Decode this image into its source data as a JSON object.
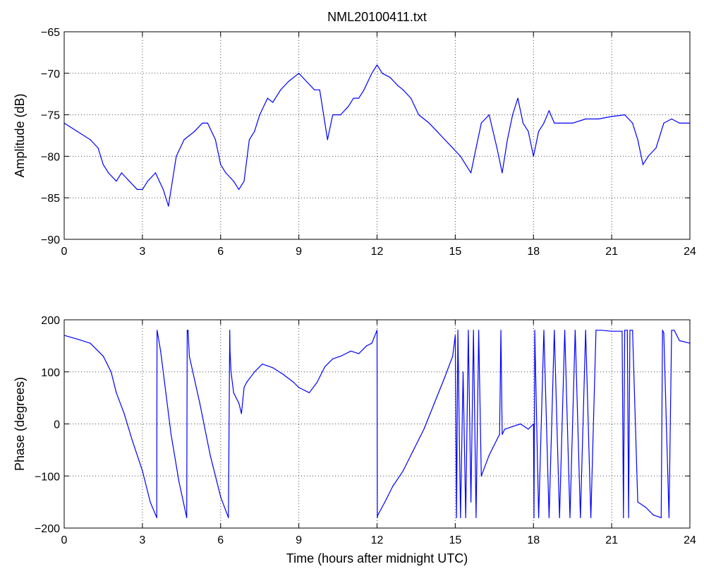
{
  "chart_data": [
    {
      "type": "line",
      "title": "NML20100411.txt",
      "xlabel": "",
      "ylabel": "Amplitude (dB)",
      "xlim": [
        0,
        24
      ],
      "ylim": [
        -90,
        -65
      ],
      "xticks": [
        0,
        3,
        6,
        9,
        12,
        15,
        18,
        21,
        24
      ],
      "xtick_labels": [
        "0",
        "3",
        "6",
        "9",
        "12",
        "15",
        "18",
        "21",
        "24"
      ],
      "yticks": [
        -65,
        -70,
        -75,
        -80,
        -85,
        -90
      ],
      "ytick_labels": [
        "−65",
        "−70",
        "−75",
        "−80",
        "−85",
        "−90"
      ],
      "grid": true,
      "color": "#0000ff",
      "series": [
        {
          "x": [
            0,
            0.5,
            1.0,
            1.3,
            1.5,
            1.7,
            2.0,
            2.2,
            2.5,
            2.8,
            3.0,
            3.2,
            3.5,
            3.8,
            4.0,
            4.1,
            4.3,
            4.6,
            5.0,
            5.3,
            5.5,
            5.8,
            6.0,
            6.2,
            6.5,
            6.7,
            6.9,
            7.1,
            7.3,
            7.5,
            7.8,
            8.0,
            8.3,
            8.6,
            9.0,
            9.3,
            9.6,
            9.8,
            10.0,
            10.1,
            10.3,
            10.6,
            10.9,
            11.1,
            11.3,
            11.5,
            11.8,
            12.0,
            12.2,
            12.5,
            12.8,
            13.0,
            13.3,
            13.6,
            14.0,
            14.3,
            14.6,
            14.9,
            15.2,
            15.4,
            15.6,
            15.8,
            16.0,
            16.3,
            16.6,
            16.8,
            17.0,
            17.2,
            17.4,
            17.6,
            17.8,
            18.0,
            18.2,
            18.4,
            18.6,
            18.8,
            19.0,
            19.5,
            20.0,
            20.5,
            21.0,
            21.5,
            21.8,
            22.0,
            22.2,
            22.4,
            22.7,
            23.0,
            23.3,
            23.6,
            24.0
          ],
          "y": [
            -76,
            -77,
            -78,
            -79,
            -81,
            -82,
            -83,
            -82,
            -83,
            -84,
            -84,
            -83,
            -82,
            -84,
            -86,
            -84,
            -80,
            -78,
            -77,
            -76,
            -76,
            -78,
            -81,
            -82,
            -83,
            -84,
            -83,
            -78,
            -77,
            -75,
            -73,
            -73.5,
            -72,
            -71,
            -70,
            -71,
            -72,
            -72,
            -76,
            -78,
            -75,
            -75,
            -74,
            -73,
            -73,
            -72,
            -70,
            -69,
            -70,
            -70.5,
            -71.5,
            -72,
            -73,
            -75,
            -76,
            -77,
            -78,
            -79,
            -80,
            -81,
            -82,
            -79,
            -76,
            -75,
            -79,
            -82,
            -78,
            -75,
            -73,
            -76,
            -77,
            -80,
            -77,
            -76,
            -74.5,
            -76,
            -76,
            -76,
            -75.5,
            -75.5,
            -75.2,
            -75,
            -76,
            -78,
            -81,
            -80,
            -79,
            -76,
            -75.5,
            -76,
            -76
          ]
        }
      ]
    },
    {
      "type": "line",
      "title": "",
      "xlabel": "Time (hours after midnight UTC)",
      "ylabel": "Phase (degrees)",
      "xlim": [
        0,
        24
      ],
      "ylim": [
        -200,
        200
      ],
      "xticks": [
        0,
        3,
        6,
        9,
        12,
        15,
        18,
        21,
        24
      ],
      "xtick_labels": [
        "0",
        "3",
        "6",
        "9",
        "12",
        "15",
        "18",
        "21",
        "24"
      ],
      "yticks": [
        200,
        100,
        0,
        -100,
        -200
      ],
      "ytick_labels": [
        "200",
        "100",
        "0",
        "−100",
        "−200"
      ],
      "grid": true,
      "color": "#0000ff",
      "series": [
        {
          "x": [
            0,
            0.5,
            1.0,
            1.5,
            1.8,
            2.0,
            2.3,
            2.6,
            3.0,
            3.3,
            3.55,
            3.56,
            3.58,
            3.7,
            3.9,
            4.1,
            4.4,
            4.7,
            4.72,
            4.75,
            4.8,
            5.2,
            5.6,
            6.0,
            6.3,
            6.35,
            6.36,
            6.4,
            6.5,
            6.7,
            6.8,
            6.9,
            7.0,
            7.3,
            7.6,
            8.0,
            8.4,
            8.8,
            9.0,
            9.4,
            9.7,
            10.0,
            10.3,
            10.6,
            11.0,
            11.3,
            11.6,
            11.8,
            12.0,
            12.01,
            12.03,
            12.3,
            12.6,
            13.0,
            13.4,
            13.8,
            14.2,
            14.6,
            14.9,
            15.0,
            15.05,
            15.1,
            15.2,
            15.3,
            15.4,
            15.5,
            15.6,
            15.7,
            15.8,
            15.9,
            16.0,
            16.3,
            16.6,
            16.7,
            16.75,
            16.8,
            16.9,
            17.2,
            17.5,
            17.8,
            18.0,
            18.02,
            18.05,
            18.2,
            18.4,
            18.6,
            18.8,
            19.0,
            19.2,
            19.4,
            19.6,
            19.8,
            20.0,
            20.2,
            20.4,
            20.6,
            21.0,
            21.4,
            21.45,
            21.5,
            21.6,
            21.65,
            21.7,
            21.8,
            22.0,
            22.3,
            22.6,
            22.9,
            22.95,
            23.0,
            23.2,
            23.3,
            23.4,
            23.6,
            24.0
          ],
          "y": [
            170,
            163,
            155,
            130,
            100,
            60,
            20,
            -30,
            -90,
            -150,
            -180,
            180,
            175,
            140,
            60,
            -20,
            -110,
            -180,
            180,
            180,
            130,
            40,
            -60,
            -140,
            -180,
            180,
            140,
            100,
            60,
            40,
            20,
            70,
            80,
            100,
            115,
            108,
            95,
            80,
            70,
            60,
            80,
            110,
            125,
            130,
            140,
            135,
            150,
            155,
            180,
            -180,
            -175,
            -150,
            -120,
            -90,
            -50,
            -10,
            40,
            90,
            130,
            170,
            -180,
            180,
            -180,
            100,
            -180,
            180,
            -150,
            180,
            -180,
            180,
            -100,
            -60,
            -30,
            -20,
            180,
            -20,
            -10,
            -5,
            0,
            -10,
            0,
            -180,
            180,
            -180,
            180,
            -180,
            180,
            -180,
            180,
            -180,
            180,
            -180,
            180,
            -180,
            180,
            180,
            178,
            178,
            -180,
            180,
            180,
            -180,
            180,
            180,
            -150,
            -160,
            -175,
            -180,
            180,
            175,
            -180,
            180,
            180,
            160,
            155
          ]
        }
      ]
    }
  ]
}
